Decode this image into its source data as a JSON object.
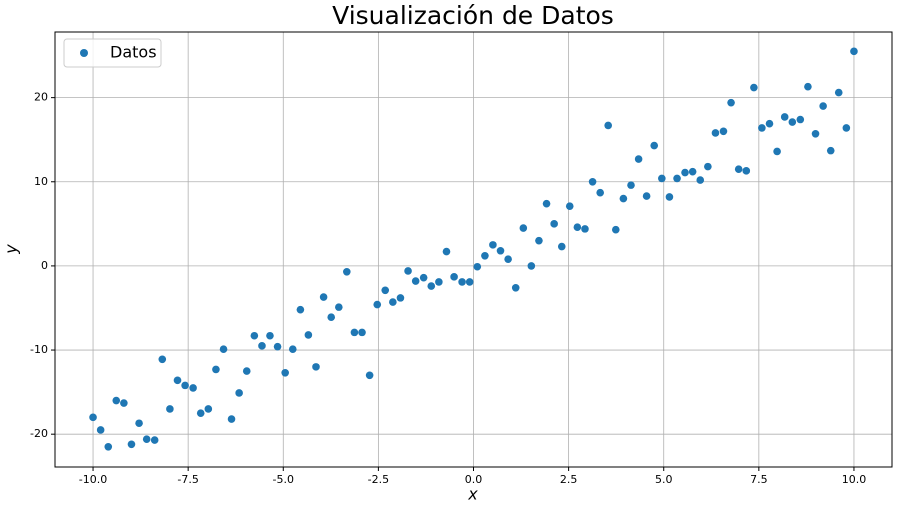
{
  "chart_data": {
    "type": "scatter",
    "title": "Visualización de Datos",
    "x_label": "x",
    "y_label": "y",
    "x": [
      -10,
      -9.8,
      -9.6,
      -9.39,
      -9.19,
      -8.99,
      -8.79,
      -8.59,
      -8.38,
      -8.18,
      -7.98,
      -7.78,
      -7.58,
      -7.37,
      -7.17,
      -6.97,
      -6.77,
      -6.57,
      -6.36,
      -6.16,
      -5.96,
      -5.76,
      -5.56,
      -5.35,
      -5.15,
      -4.95,
      -4.75,
      -4.55,
      -4.34,
      -4.14,
      -3.94,
      -3.74,
      -3.54,
      -3.33,
      -3.13,
      -2.93,
      -2.73,
      -2.53,
      -2.32,
      -2.12,
      -1.92,
      -1.72,
      -1.52,
      -1.31,
      -1.11,
      -0.91,
      -0.71,
      -0.51,
      -0.3,
      -0.1,
      0.1,
      0.3,
      0.51,
      0.71,
      0.91,
      1.11,
      1.31,
      1.52,
      1.72,
      1.92,
      2.12,
      2.32,
      2.53,
      2.73,
      2.93,
      3.13,
      3.33,
      3.54,
      3.74,
      3.94,
      4.14,
      4.34,
      4.55,
      4.75,
      4.95,
      5.15,
      5.35,
      5.56,
      5.76,
      5.96,
      6.16,
      6.36,
      6.57,
      6.77,
      6.97,
      7.17,
      7.37,
      7.58,
      7.78,
      7.98,
      8.18,
      8.38,
      8.59,
      8.79,
      8.99,
      9.19,
      9.39,
      9.6,
      9.8,
      10
    ],
    "series": [
      {
        "name": "Datos",
        "color": "#1f77b4",
        "values": [
          -18.0,
          -19.5,
          -21.5,
          -16.0,
          -16.3,
          -21.2,
          -18.7,
          -20.6,
          -20.7,
          -11.1,
          -17.0,
          -13.6,
          -14.2,
          -14.5,
          -17.5,
          -17.0,
          -12.3,
          -9.9,
          -18.2,
          -15.1,
          -12.5,
          -8.3,
          -9.5,
          -8.3,
          -9.6,
          -12.7,
          -9.9,
          -5.2,
          -8.2,
          -12.0,
          -3.7,
          -6.1,
          -4.9,
          -0.7,
          -7.9,
          -7.9,
          -13.0,
          -4.6,
          -2.9,
          -4.3,
          -3.8,
          -0.6,
          -1.8,
          -1.4,
          -2.4,
          -1.9,
          1.7,
          -1.3,
          -1.9,
          -1.9,
          -0.1,
          1.2,
          2.5,
          1.8,
          0.8,
          -2.6,
          4.5,
          0.0,
          3.0,
          7.4,
          5.0,
          2.3,
          7.1,
          4.6,
          4.4,
          10.0,
          8.7,
          16.7,
          4.3,
          8.0,
          9.6,
          12.7,
          8.3,
          14.3,
          10.4,
          8.2,
          10.4,
          11.1,
          11.2,
          10.2,
          11.8,
          15.8,
          16.0,
          19.4,
          11.5,
          11.3,
          21.2,
          16.4,
          16.9,
          13.6,
          17.7,
          17.1,
          17.4,
          21.3,
          15.7,
          19.0,
          13.7,
          20.6,
          16.4,
          25.5
        ]
      }
    ],
    "xlim": [
      -11,
      11
    ],
    "ylim": [
      -23.9,
      27.8
    ],
    "xticks": [
      {
        "value": -10,
        "label": "-10.0"
      },
      -7.5,
      {
        "value": -5,
        "label": "-5.0"
      },
      -2.5,
      {
        "value": 0,
        "label": "0.0"
      },
      2.5,
      {
        "value": 5,
        "label": "5.0"
      },
      7.5,
      {
        "value": 10,
        "label": "10.0"
      }
    ],
    "yticks": [
      -20,
      -10,
      0,
      10,
      20
    ],
    "grid": true,
    "legend": "upper left"
  }
}
